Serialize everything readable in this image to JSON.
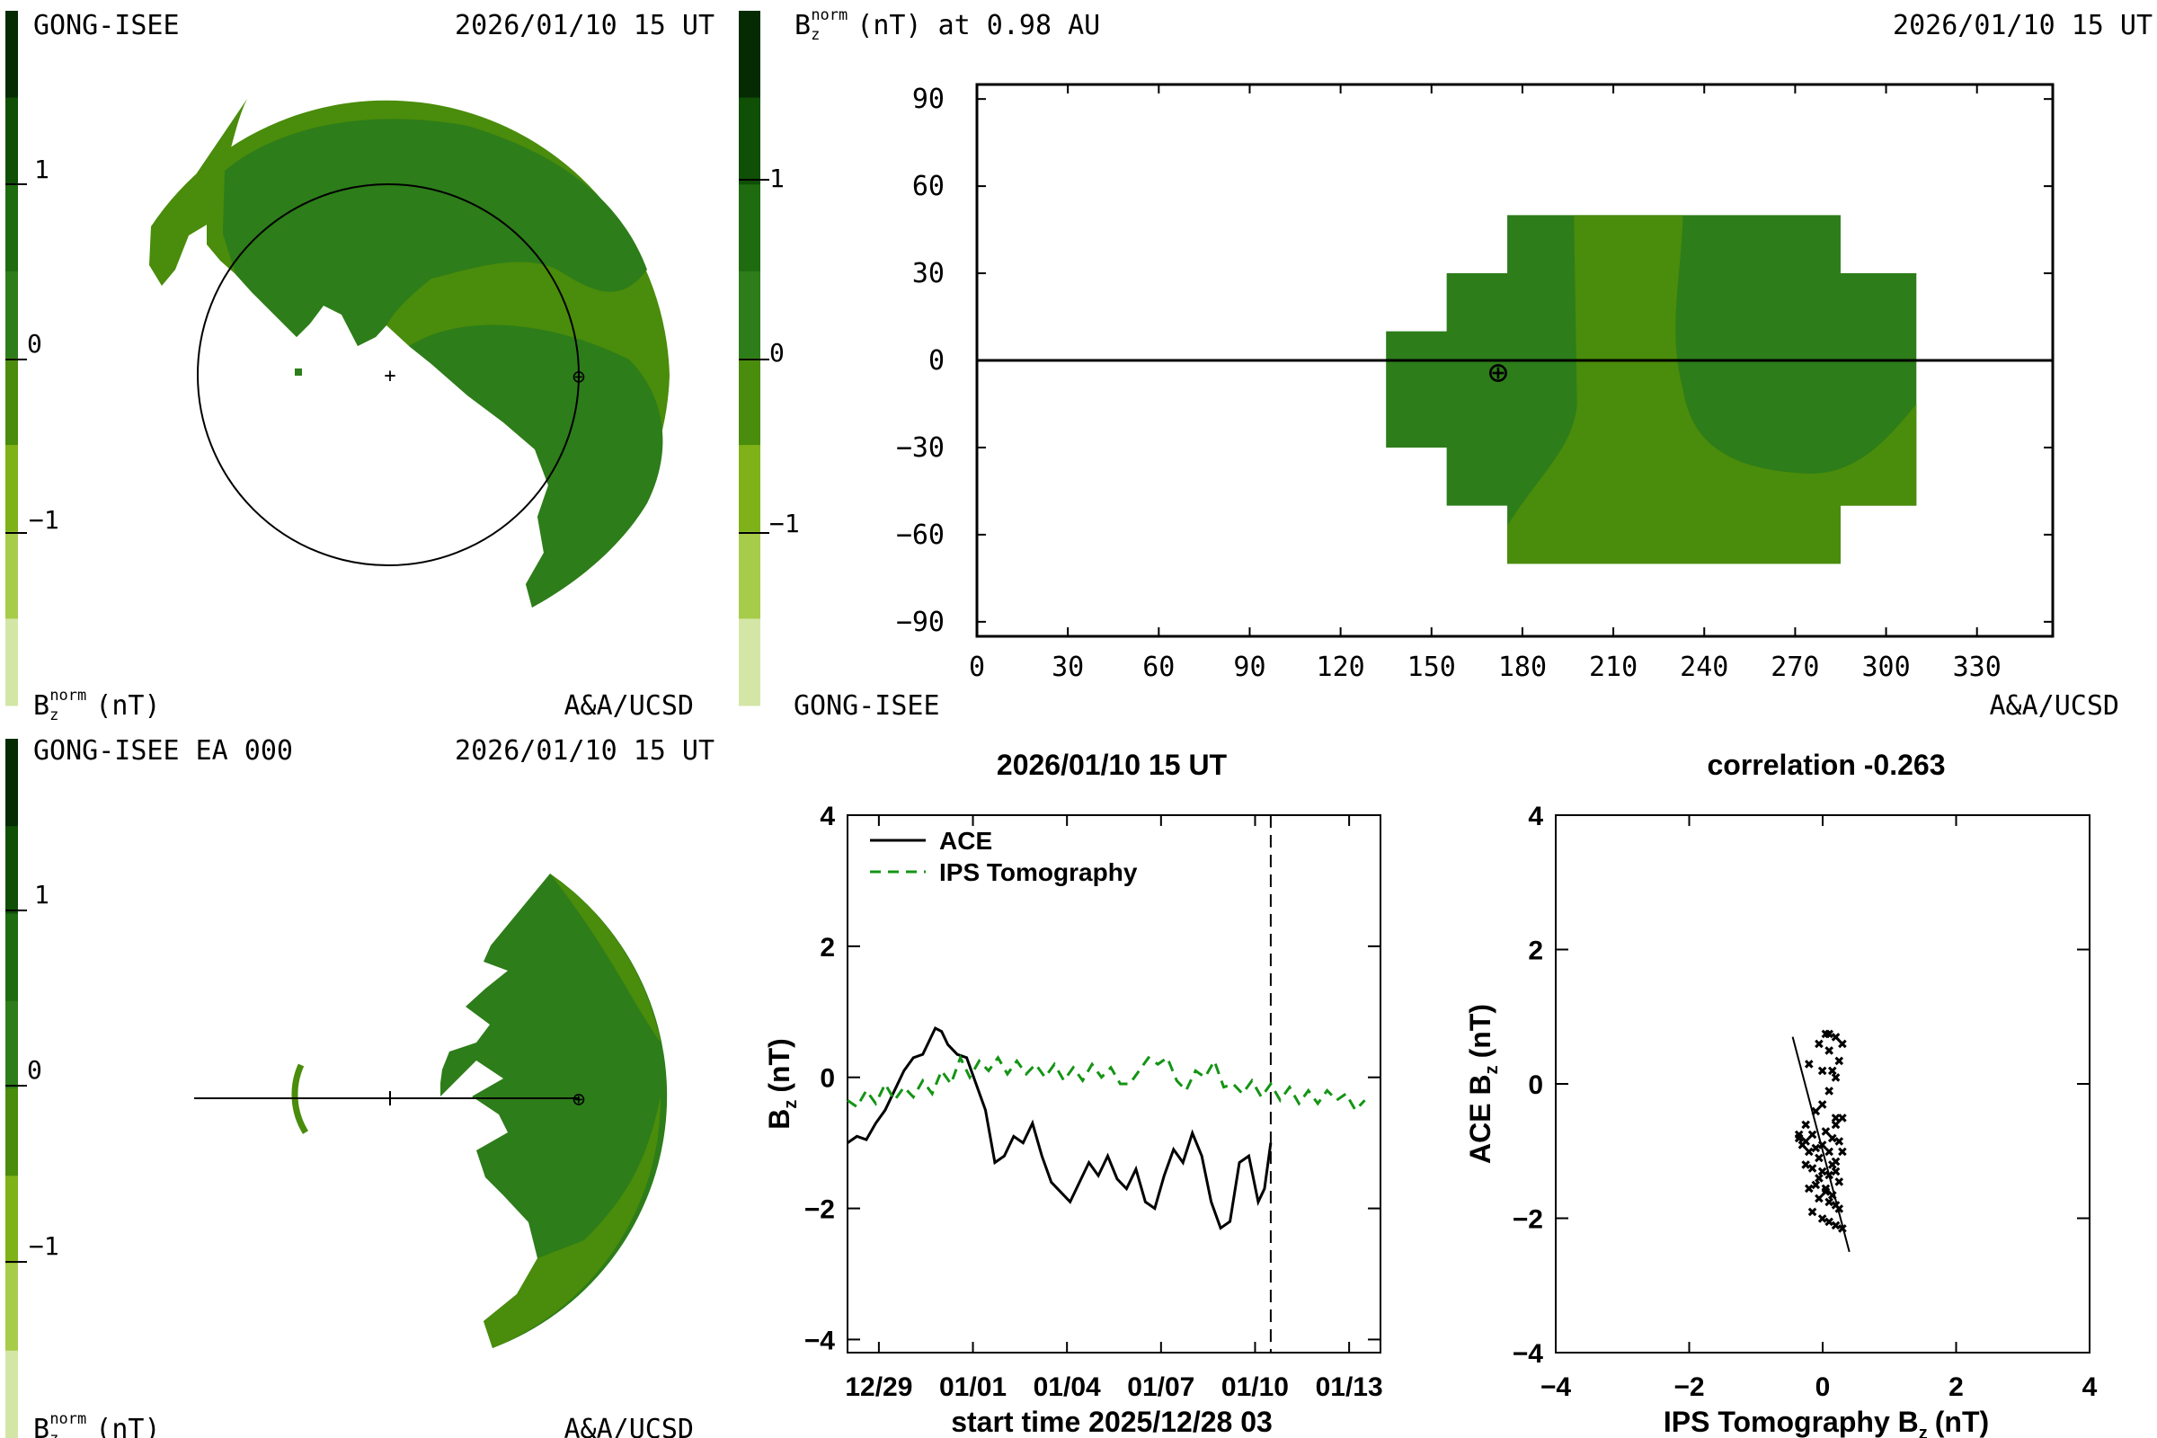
{
  "panels": {
    "top_left": {
      "header_left": "GONG-ISEE",
      "header_right": "2026/01/10 15 UT",
      "colorbar_label_main": "B",
      "colorbar_label_sub": "z",
      "colorbar_label_sup": "norm",
      "colorbar_label_unit": "(nT)",
      "footer_right": "A&A/UCSD",
      "colorbar_ticks": [
        "1",
        "0",
        "−1"
      ],
      "center_marker": "+",
      "earth_symbol": "⊕"
    },
    "top_right": {
      "header_left_main": "B",
      "header_left_sub": "z",
      "header_left_sup": "norm",
      "header_left_rest": "(nT) at 0.98 AU",
      "header_right": "2026/01/10 15 UT",
      "footer_left": "GONG-ISEE",
      "footer_right": "A&A/UCSD",
      "colorbar_ticks": [
        "1",
        "0",
        "−1"
      ],
      "earth_symbol": "⊕"
    },
    "bottom_left": {
      "header_left": "GONG-ISEE EA 000",
      "header_right": "2026/01/10 15 UT",
      "colorbar_label_main": "B",
      "colorbar_label_sub": "z",
      "colorbar_label_sup": "norm",
      "colorbar_label_unit": "(nT)",
      "footer_right": "A&A/UCSD",
      "colorbar_ticks": [
        "1",
        "0",
        "−1"
      ],
      "earth_symbol": "⊕"
    }
  },
  "colors": {
    "scale": [
      "#d4e6a6",
      "#a7cc49",
      "#7fb218",
      "#4a8c0b",
      "#2d7d1a",
      "#1f6b10",
      "#0f4f06",
      "#042b02"
    ],
    "dark_green": "#2d7d1a",
    "light_green": "#4a8c0b",
    "dashed_series": "#149414"
  },
  "chart_data": [
    {
      "type": "heatmap",
      "panel": "top_right",
      "xticks": [
        "0",
        "30",
        "60",
        "90",
        "120",
        "150",
        "180",
        "210",
        "240",
        "270",
        "300",
        "330"
      ],
      "yticks": [
        "90",
        "60",
        "30",
        "0",
        "−30",
        "−60",
        "−90"
      ],
      "xlim": [
        0,
        355
      ],
      "ylim": [
        -95,
        95
      ],
      "earth_position": {
        "lon": 172,
        "lat": -4
      }
    },
    {
      "type": "line",
      "title": "2026/01/10 15 UT",
      "xlabel": "start time 2025/12/28 03",
      "ylabel_main": "B",
      "ylabel_sub": "z",
      "ylabel_unit": "(nT)",
      "xlim": [
        0,
        17
      ],
      "ylim": [
        -4.2,
        4
      ],
      "xticks": [
        {
          "x": 1,
          "label": "12/29"
        },
        {
          "x": 4,
          "label": "01/01"
        },
        {
          "x": 7,
          "label": "01/04"
        },
        {
          "x": 10,
          "label": "01/07"
        },
        {
          "x": 13,
          "label": "01/10"
        },
        {
          "x": 16,
          "label": "01/13"
        }
      ],
      "yticks": [
        "4",
        "2",
        "0",
        "−2",
        "−4"
      ],
      "yvalues": [
        4,
        2,
        0,
        -2,
        -4
      ],
      "vline_x": 13.5,
      "series": [
        {
          "name": "ACE",
          "style": "solid",
          "x": [
            0.0,
            0.3,
            0.6,
            0.9,
            1.2,
            1.5,
            1.8,
            2.1,
            2.4,
            2.6,
            2.8,
            3.0,
            3.2,
            3.5,
            3.8,
            4.1,
            4.4,
            4.7,
            5.0,
            5.3,
            5.6,
            5.9,
            6.2,
            6.5,
            6.8,
            7.1,
            7.4,
            7.7,
            8.0,
            8.3,
            8.6,
            8.9,
            9.2,
            9.5,
            9.8,
            10.1,
            10.4,
            10.7,
            11.0,
            11.3,
            11.6,
            11.9,
            12.2,
            12.5,
            12.8,
            13.1,
            13.3,
            13.5
          ],
          "y": [
            -1.0,
            -0.9,
            -0.95,
            -0.7,
            -0.5,
            -0.2,
            0.1,
            0.3,
            0.35,
            0.55,
            0.75,
            0.7,
            0.5,
            0.35,
            0.3,
            -0.1,
            -0.5,
            -1.3,
            -1.2,
            -0.9,
            -1.0,
            -0.7,
            -1.2,
            -1.6,
            -1.75,
            -1.9,
            -1.6,
            -1.3,
            -1.5,
            -1.2,
            -1.55,
            -1.7,
            -1.4,
            -1.9,
            -2.0,
            -1.5,
            -1.1,
            -1.3,
            -0.85,
            -1.2,
            -1.9,
            -2.3,
            -2.2,
            -1.3,
            -1.2,
            -1.9,
            -1.7,
            -1.0
          ]
        },
        {
          "name": "IPS Tomography",
          "style": "dashed",
          "x": [
            0.0,
            0.3,
            0.6,
            0.9,
            1.2,
            1.5,
            1.8,
            2.1,
            2.4,
            2.7,
            3.0,
            3.3,
            3.6,
            3.9,
            4.2,
            4.5,
            4.8,
            5.1,
            5.4,
            5.7,
            6.0,
            6.3,
            6.6,
            6.9,
            7.2,
            7.5,
            7.8,
            8.1,
            8.4,
            8.7,
            9.0,
            9.3,
            9.6,
            9.9,
            10.2,
            10.5,
            10.8,
            11.1,
            11.4,
            11.7,
            12.0,
            12.3,
            12.6,
            12.9,
            13.2,
            13.5,
            13.8,
            14.1,
            14.4,
            14.7,
            15.0,
            15.3,
            15.6,
            15.9,
            16.2,
            16.5
          ],
          "y": [
            -0.35,
            -0.45,
            -0.2,
            -0.4,
            -0.1,
            -0.35,
            -0.15,
            -0.3,
            -0.05,
            -0.25,
            0.1,
            -0.1,
            0.3,
            0.0,
            0.25,
            0.1,
            0.3,
            0.05,
            0.25,
            0.05,
            0.2,
            0.0,
            0.2,
            -0.05,
            0.15,
            -0.05,
            0.2,
            0.0,
            0.15,
            -0.1,
            -0.1,
            0.1,
            0.3,
            0.2,
            0.3,
            -0.05,
            -0.2,
            0.1,
            0.0,
            0.25,
            -0.15,
            -0.1,
            -0.25,
            -0.05,
            -0.3,
            -0.1,
            -0.35,
            -0.15,
            -0.4,
            -0.2,
            -0.4,
            -0.2,
            -0.35,
            -0.25,
            -0.5,
            -0.35
          ]
        }
      ]
    },
    {
      "type": "scatter",
      "title": "correlation -0.263",
      "xlabel_main": "IPS Tomography B",
      "xlabel_sub": "z",
      "xlabel_unit": "(nT)",
      "ylabel_main": "ACE B",
      "ylabel_sub": "z",
      "ylabel_unit": "(nT)",
      "xlim": [
        -4,
        4
      ],
      "ylim": [
        -4,
        4
      ],
      "xticks": [
        "−4",
        "−2",
        "0",
        "2",
        "4"
      ],
      "xvalues": [
        -4,
        -2,
        0,
        2,
        4
      ],
      "yticks": [
        "4",
        "2",
        "0",
        "−2",
        "−4"
      ],
      "yvalues": [
        4,
        2,
        0,
        -2,
        -4
      ],
      "marker": "✖",
      "points": {
        "x": [
          -0.35,
          -0.25,
          -0.15,
          0.0,
          0.05,
          0.15,
          0.25,
          0.3,
          0.2,
          -0.1,
          -0.3,
          -0.2,
          -0.05,
          0.1,
          0.2,
          0.3,
          -0.35,
          -0.25,
          -0.15,
          0.0,
          0.1,
          0.2,
          0.25,
          -0.1,
          -0.2,
          0.05,
          0.15,
          -0.05,
          0.1,
          0.2,
          0.25,
          -0.15,
          0.0,
          0.1,
          0.2,
          0.3,
          -0.05,
          0.05,
          0.15,
          0.2,
          -0.25,
          -0.1,
          0.0,
          0.1,
          0.2,
          0.15,
          0.25,
          -0.05,
          0.05,
          0.0,
          0.1,
          -0.2,
          0.3,
          0.2,
          0.1
        ],
        "y": [
          -0.8,
          -0.85,
          -0.75,
          -0.9,
          -0.7,
          -0.8,
          -0.85,
          -0.5,
          -0.5,
          -0.95,
          -0.9,
          -1.0,
          -1.1,
          -1.0,
          -1.15,
          -1.0,
          -0.75,
          -1.2,
          -1.25,
          -1.3,
          -1.35,
          -1.3,
          -1.45,
          -1.5,
          -1.55,
          -1.6,
          -1.65,
          -1.7,
          -1.75,
          -1.8,
          -1.85,
          -1.9,
          -2.0,
          -2.05,
          -2.1,
          -2.15,
          -1.4,
          -1.55,
          -1.2,
          -0.6,
          -0.6,
          -0.4,
          -0.3,
          -0.1,
          0.1,
          0.2,
          0.35,
          0.6,
          0.75,
          0.2,
          0.5,
          0.3,
          0.6,
          0.7,
          0.75
        ]
      },
      "fit_line": {
        "x": [
          -0.45,
          0.4
        ],
        "y": [
          0.7,
          -2.5
        ]
      }
    }
  ]
}
